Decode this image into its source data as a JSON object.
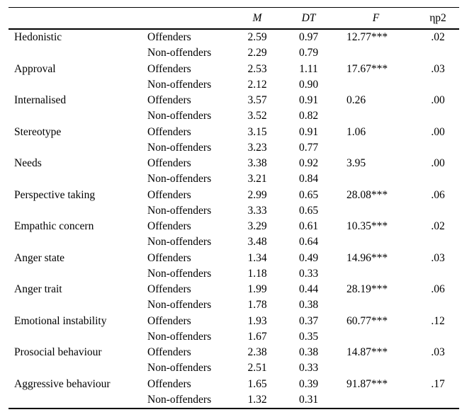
{
  "header": {
    "label_col": "",
    "group_col": "",
    "m": "M",
    "dt": "DT",
    "f": "F",
    "eta": "ηp2"
  },
  "rows": [
    {
      "label": "Hedonistic",
      "group": "Offenders",
      "m": "2.59",
      "dt": "0.97",
      "f": "12.77***",
      "eta": ".02"
    },
    {
      "label": "",
      "group": "Non-offenders",
      "m": "2.29",
      "dt": "0.79",
      "f": "",
      "eta": ""
    },
    {
      "label": "Approval",
      "group": "Offenders",
      "m": "2.53",
      "dt": "1.11",
      "f": "17.67***",
      "eta": ".03"
    },
    {
      "label": "",
      "group": "Non-offenders",
      "m": "2.12",
      "dt": "0.90",
      "f": "",
      "eta": ""
    },
    {
      "label": "Internalised",
      "group": "Offenders",
      "m": "3.57",
      "dt": "0.91",
      "f": "0.26",
      "eta": ".00"
    },
    {
      "label": "",
      "group": "Non-offenders",
      "m": "3.52",
      "dt": "0.82",
      "f": "",
      "eta": ""
    },
    {
      "label": "Stereotype",
      "group": "Offenders",
      "m": "3.15",
      "dt": "0.91",
      "f": "1.06",
      "eta": ".00"
    },
    {
      "label": "",
      "group": "Non-offenders",
      "m": "3.23",
      "dt": "0.77",
      "f": "",
      "eta": ""
    },
    {
      "label": "Needs",
      "group": "Offenders",
      "m": "3.38",
      "dt": "0.92",
      "f": "3.95",
      "eta": ".00"
    },
    {
      "label": "",
      "group": "Non-offenders",
      "m": "3.21",
      "dt": "0.84",
      "f": "",
      "eta": ""
    },
    {
      "label": "Perspective taking",
      "group": "Offenders",
      "m": "2.99",
      "dt": "0.65",
      "f": "28.08***",
      "eta": ".06"
    },
    {
      "label": "",
      "group": "Non-offenders",
      "m": "3.33",
      "dt": "0.65",
      "f": "",
      "eta": ""
    },
    {
      "label": "Empathic concern",
      "group": "Offenders",
      "m": "3.29",
      "dt": "0.61",
      "f": "10.35***",
      "eta": ".02"
    },
    {
      "label": "",
      "group": "Non-offenders",
      "m": "3.48",
      "dt": "0.64",
      "f": "",
      "eta": ""
    },
    {
      "label": "Anger state",
      "group": "Offenders",
      "m": "1.34",
      "dt": "0.49",
      "f": "14.96***",
      "eta": ".03"
    },
    {
      "label": "",
      "group": "Non-offenders",
      "m": "1.18",
      "dt": "0.33",
      "f": "",
      "eta": ""
    },
    {
      "label": "Anger trait",
      "group": "Offenders",
      "m": "1.99",
      "dt": "0.44",
      "f": "28.19***",
      "eta": ".06"
    },
    {
      "label": "",
      "group": "Non-offenders",
      "m": "1.78",
      "dt": "0.38",
      "f": "",
      "eta": ""
    },
    {
      "label": "Emotional instability",
      "group": "Offenders",
      "m": "1.93",
      "dt": "0.37",
      "f": "60.77***",
      "eta": ".12"
    },
    {
      "label": "",
      "group": "Non-offenders",
      "m": "1.67",
      "dt": "0.35",
      "f": "",
      "eta": ""
    },
    {
      "label": "Prosocial behaviour",
      "group": "Offenders",
      "m": "2.38",
      "dt": "0.38",
      "f": "14.87***",
      "eta": ".03"
    },
    {
      "label": "",
      "group": "Non-offenders",
      "m": "2.51",
      "dt": "0.33",
      "f": "",
      "eta": ""
    },
    {
      "label": "Aggressive behaviour",
      "group": "Offenders",
      "m": "1.65",
      "dt": "0.39",
      "f": "91.87***",
      "eta": ".17"
    },
    {
      "label": "",
      "group": "Non-offenders",
      "m": "1.32",
      "dt": "0.31",
      "f": "",
      "eta": ""
    }
  ]
}
